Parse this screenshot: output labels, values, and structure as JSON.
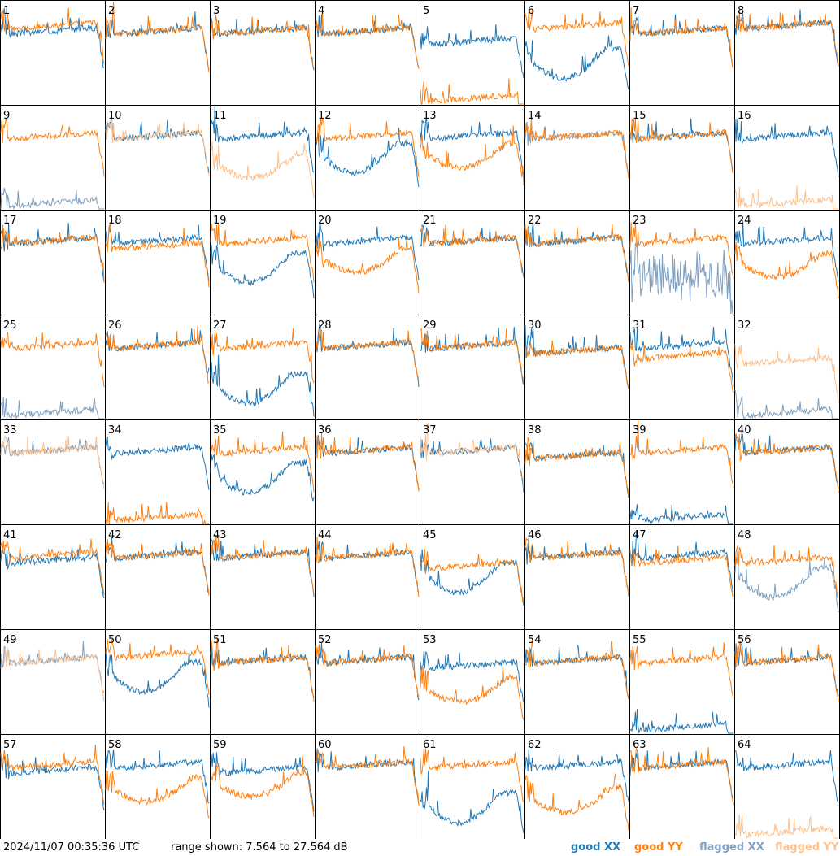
{
  "timestamp": "2024/11/07 00:35:36 UTC",
  "range_text": "range shown: 7.564 to 27.564 dB",
  "legend": {
    "good_xx": "good XX",
    "good_yy": "good YY",
    "flagged_xx": "flagged XX",
    "flagged_yy": "flagged YY"
  },
  "colors": {
    "good_xx": "#1f77b4",
    "good_yy": "#ff7f0e",
    "flagged_xx": "#7f9fbf",
    "flagged_yy": "#ffbf8a"
  },
  "chart_data": {
    "type": "line",
    "grid": [
      8,
      8
    ],
    "ylim": [
      7.564,
      27.564
    ],
    "yunit": "dB",
    "panels": [
      {
        "id": "1",
        "xx": "good",
        "yy": "good",
        "xx_level": 21,
        "yy_level": 22,
        "shape": "drop_yy"
      },
      {
        "id": "2",
        "xx": "good",
        "yy": "good",
        "xx_level": 21,
        "yy_level": 21,
        "shape": "flat"
      },
      {
        "id": "3",
        "xx": "good",
        "yy": "good",
        "xx_level": 21,
        "yy_level": 21,
        "shape": "flat"
      },
      {
        "id": "4",
        "xx": "good",
        "yy": "good",
        "xx_level": 21,
        "yy_level": 21,
        "shape": "flat"
      },
      {
        "id": "5",
        "xx": "good",
        "yy": "good",
        "xx_level": 19,
        "yy_level": 8,
        "shape": "yy_low"
      },
      {
        "id": "6",
        "xx": "good",
        "yy": "good",
        "xx_level": 17,
        "yy_level": 22,
        "shape": "dip_xx"
      },
      {
        "id": "7",
        "xx": "good",
        "yy": "good",
        "xx_level": 21,
        "yy_level": 21,
        "shape": "flat"
      },
      {
        "id": "8",
        "xx": "good",
        "yy": "good",
        "xx_level": 22,
        "yy_level": 22,
        "shape": "flat"
      },
      {
        "id": "9",
        "xx": "flagged",
        "yy": "good",
        "xx_level": 8,
        "yy_level": 21,
        "shape": "xx_low"
      },
      {
        "id": "10",
        "xx": "good",
        "yy": "flagged",
        "xx_level": 21,
        "yy_level": 21,
        "shape": "flat"
      },
      {
        "id": "11",
        "xx": "good",
        "yy": "flagged",
        "xx_level": 21,
        "yy_level": 17,
        "shape": "dip_yy"
      },
      {
        "id": "12",
        "xx": "good",
        "yy": "good",
        "xx_level": 19,
        "yy_level": 21,
        "shape": "dip_xx"
      },
      {
        "id": "13",
        "xx": "good",
        "yy": "good",
        "xx_level": 21,
        "yy_level": 19,
        "shape": "dip_yy"
      },
      {
        "id": "14",
        "xx": "flagged",
        "yy": "good",
        "xx_level": 21,
        "yy_level": 21,
        "shape": "flat"
      },
      {
        "id": "15",
        "xx": "good",
        "yy": "good",
        "xx_level": 21,
        "yy_level": 21,
        "shape": "flat"
      },
      {
        "id": "16",
        "xx": "good",
        "yy": "flagged",
        "xx_level": 21,
        "yy_level": 8,
        "shape": "yy_low"
      },
      {
        "id": "17",
        "xx": "good",
        "yy": "good",
        "xx_level": 21,
        "yy_level": 21,
        "shape": "flat"
      },
      {
        "id": "18",
        "xx": "good",
        "yy": "good",
        "xx_level": 21,
        "yy_level": 20,
        "shape": "flat"
      },
      {
        "id": "19",
        "xx": "good",
        "yy": "good",
        "xx_level": 18,
        "yy_level": 21,
        "shape": "dip_xx"
      },
      {
        "id": "20",
        "xx": "good",
        "yy": "good",
        "xx_level": 21,
        "yy_level": 19,
        "shape": "dip_yy"
      },
      {
        "id": "21",
        "xx": "good",
        "yy": "good",
        "xx_level": 21,
        "yy_level": 21,
        "shape": "flat"
      },
      {
        "id": "22",
        "xx": "good",
        "yy": "good",
        "xx_level": 21,
        "yy_level": 21,
        "shape": "flat"
      },
      {
        "id": "23",
        "xx": "flagged",
        "yy": "good",
        "xx_level": 14,
        "yy_level": 21,
        "shape": "noisy_xx"
      },
      {
        "id": "24",
        "xx": "good",
        "yy": "good",
        "xx_level": 21,
        "yy_level": 18,
        "shape": "dip_yy"
      },
      {
        "id": "25",
        "xx": "flagged",
        "yy": "good",
        "xx_level": 8,
        "yy_level": 21,
        "shape": "xx_low"
      },
      {
        "id": "26",
        "xx": "good",
        "yy": "good",
        "xx_level": 21,
        "yy_level": 21,
        "shape": "flat"
      },
      {
        "id": "27",
        "xx": "good",
        "yy": "good",
        "xx_level": 15,
        "yy_level": 21,
        "shape": "dip_xx"
      },
      {
        "id": "28",
        "xx": "good",
        "yy": "good",
        "xx_level": 21,
        "yy_level": 21,
        "shape": "flat"
      },
      {
        "id": "29",
        "xx": "good",
        "yy": "good",
        "xx_level": 21,
        "yy_level": 21,
        "shape": "flat"
      },
      {
        "id": "30",
        "xx": "good",
        "yy": "good",
        "xx_level": 20,
        "yy_level": 20,
        "shape": "flat"
      },
      {
        "id": "31",
        "xx": "good",
        "yy": "good",
        "xx_level": 21,
        "yy_level": 19,
        "shape": "flat"
      },
      {
        "id": "32",
        "xx": "flagged",
        "yy": "flagged",
        "xx_level": 8,
        "yy_level": 18,
        "shape": "xx_low"
      },
      {
        "id": "33",
        "xx": "flagged",
        "yy": "flagged",
        "xx_level": 21,
        "yy_level": 21,
        "shape": "flat"
      },
      {
        "id": "34",
        "xx": "good",
        "yy": "good",
        "xx_level": 21,
        "yy_level": 8,
        "shape": "yy_low"
      },
      {
        "id": "35",
        "xx": "good",
        "yy": "good",
        "xx_level": 18,
        "yy_level": 21,
        "shape": "dip_xx"
      },
      {
        "id": "36",
        "xx": "good",
        "yy": "good",
        "xx_level": 21,
        "yy_level": 21,
        "shape": "flat"
      },
      {
        "id": "37",
        "xx": "good",
        "yy": "flagged",
        "xx_level": 21,
        "yy_level": 21,
        "shape": "flat"
      },
      {
        "id": "38",
        "xx": "good",
        "yy": "good",
        "xx_level": 20,
        "yy_level": 20,
        "shape": "flat"
      },
      {
        "id": "39",
        "xx": "good",
        "yy": "good",
        "xx_level": 8,
        "yy_level": 21,
        "shape": "xx_low"
      },
      {
        "id": "40",
        "xx": "good",
        "yy": "good",
        "xx_level": 21,
        "yy_level": 21,
        "shape": "flat"
      },
      {
        "id": "41",
        "xx": "good",
        "yy": "good",
        "xx_level": 20,
        "yy_level": 21,
        "shape": "flat"
      },
      {
        "id": "42",
        "xx": "good",
        "yy": "good",
        "xx_level": 21,
        "yy_level": 21,
        "shape": "flat"
      },
      {
        "id": "43",
        "xx": "good",
        "yy": "good",
        "xx_level": 21,
        "yy_level": 21,
        "shape": "flat"
      },
      {
        "id": "44",
        "xx": "good",
        "yy": "good",
        "xx_level": 21,
        "yy_level": 21,
        "shape": "flat"
      },
      {
        "id": "45",
        "xx": "good",
        "yy": "good",
        "xx_level": 19,
        "yy_level": 19,
        "shape": "dip_xx"
      },
      {
        "id": "46",
        "xx": "good",
        "yy": "good",
        "xx_level": 21,
        "yy_level": 21,
        "shape": "flat"
      },
      {
        "id": "47",
        "xx": "good",
        "yy": "good",
        "xx_level": 21,
        "yy_level": 20,
        "shape": "flat"
      },
      {
        "id": "48",
        "xx": "flagged",
        "yy": "good",
        "xx_level": 18,
        "yy_level": 20,
        "shape": "dip_xx"
      },
      {
        "id": "49",
        "xx": "flagged",
        "yy": "flagged",
        "xx_level": 21,
        "yy_level": 21,
        "shape": "flat"
      },
      {
        "id": "50",
        "xx": "good",
        "yy": "good",
        "xx_level": 20,
        "yy_level": 22,
        "shape": "dip_xx"
      },
      {
        "id": "51",
        "xx": "good",
        "yy": "good",
        "xx_level": 21,
        "yy_level": 21,
        "shape": "flat"
      },
      {
        "id": "52",
        "xx": "good",
        "yy": "good",
        "xx_level": 21,
        "yy_level": 21,
        "shape": "flat"
      },
      {
        "id": "53",
        "xx": "good",
        "yy": "good",
        "xx_level": 20,
        "yy_level": 17,
        "shape": "dip_yy"
      },
      {
        "id": "54",
        "xx": "good",
        "yy": "good",
        "xx_level": 21,
        "yy_level": 21,
        "shape": "flat"
      },
      {
        "id": "55",
        "xx": "good",
        "yy": "good",
        "xx_level": 8,
        "yy_level": 21,
        "shape": "xx_low"
      },
      {
        "id": "56",
        "xx": "good",
        "yy": "good",
        "xx_level": 21,
        "yy_level": 21,
        "shape": "flat"
      },
      {
        "id": "57",
        "xx": "good",
        "yy": "good",
        "xx_level": 20,
        "yy_level": 21,
        "shape": "flat"
      },
      {
        "id": "58",
        "xx": "good",
        "yy": "good",
        "xx_level": 21,
        "yy_level": 18,
        "shape": "dip_yy"
      },
      {
        "id": "59",
        "xx": "good",
        "yy": "good",
        "xx_level": 20,
        "yy_level": 19,
        "shape": "dip_yy"
      },
      {
        "id": "60",
        "xx": "good",
        "yy": "good",
        "xx_level": 21,
        "yy_level": 21,
        "shape": "flat"
      },
      {
        "id": "61",
        "xx": "good",
        "yy": "good",
        "xx_level": 15,
        "yy_level": 21,
        "shape": "dip_xx"
      },
      {
        "id": "62",
        "xx": "good",
        "yy": "good",
        "xx_level": 21,
        "yy_level": 16,
        "shape": "dip_yy"
      },
      {
        "id": "63",
        "xx": "good",
        "yy": "good",
        "xx_level": 21,
        "yy_level": 21,
        "shape": "flat"
      },
      {
        "id": "64",
        "xx": "good",
        "yy": "flagged",
        "xx_level": 21,
        "yy_level": 8,
        "shape": "yy_low"
      }
    ]
  }
}
